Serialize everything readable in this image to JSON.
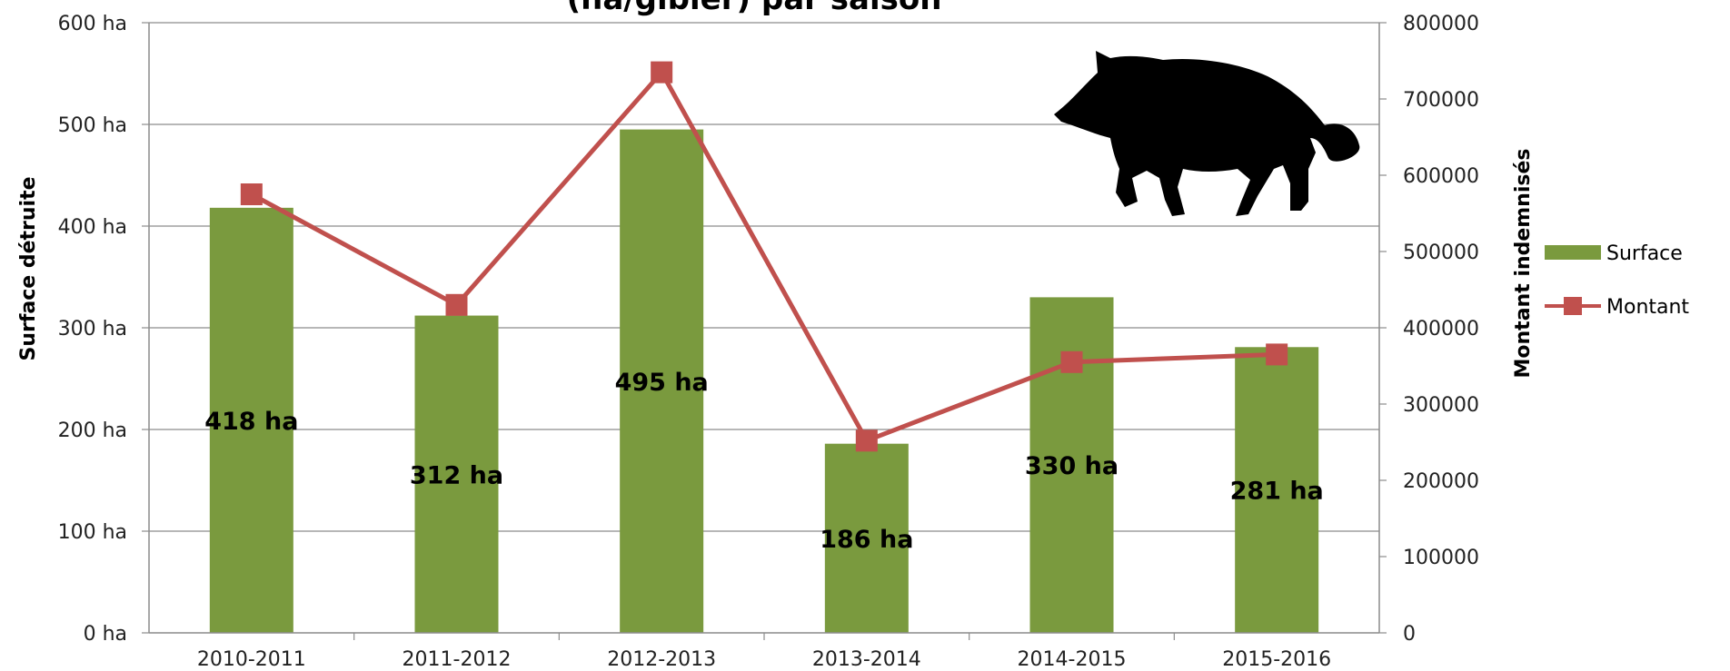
{
  "chart_data": {
    "type": "bar",
    "title": "(ha/gibier) par saison",
    "categories": [
      "2010-2011",
      "2011-2012",
      "2012-2013",
      "2013-2014",
      "2014-2015",
      "2015-2016"
    ],
    "series": [
      {
        "name": "Surface",
        "type": "bar",
        "axis": "left",
        "values": [
          418,
          312,
          495,
          186,
          330,
          281
        ],
        "labels": [
          "418 ha",
          "312 ha",
          "495 ha",
          "186 ha",
          "330 ha",
          "281 ha"
        ],
        "color": "#7a9a3e"
      },
      {
        "name": "Montant",
        "type": "line",
        "axis": "right",
        "values": [
          575000,
          430000,
          735000,
          252000,
          355000,
          365000
        ],
        "color": "#c0504d"
      }
    ],
    "ylabel": "Surface détruite",
    "y2label": "Montant indemnisés",
    "ylim": [
      0,
      600
    ],
    "y2lim": [
      0,
      800000
    ],
    "yticks": [
      "0 ha",
      "100 ha",
      "200 ha",
      "300 ha",
      "400 ha",
      "500 ha",
      "600 ha"
    ],
    "y2ticks": [
      "0",
      "100000",
      "200000",
      "300000",
      "400000",
      "500000",
      "600000",
      "700000",
      "800000"
    ],
    "grid": true,
    "legend_position": "right"
  },
  "decoration": {
    "icon": "boar-silhouette-icon"
  }
}
